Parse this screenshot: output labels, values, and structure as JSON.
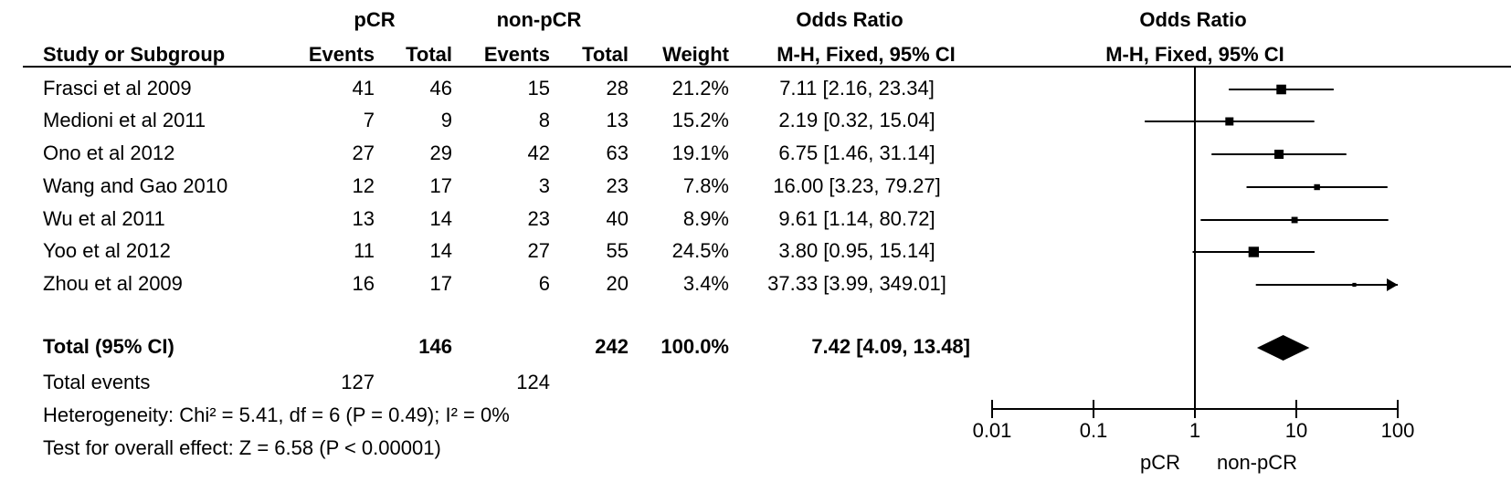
{
  "chart_data": {
    "type": "forest",
    "header_groups": [
      "pCR",
      "non-pCR",
      "Odds Ratio",
      "Odds Ratio"
    ],
    "columns": [
      "Study or Subgroup",
      "Events",
      "Total",
      "Events",
      "Total",
      "Weight",
      "M-H, Fixed, 95% CI",
      "M-H, Fixed, 95% CI"
    ],
    "studies": [
      {
        "name": "Frasci et al 2009",
        "pcr_events": 41,
        "pcr_total": 46,
        "nonpcr_events": 15,
        "nonpcr_total": 28,
        "weight": {
          "value": 21.2,
          "label": "21.2%"
        },
        "or": 7.11,
        "lower": 2.16,
        "upper": 23.34,
        "ci_label": "7.11 [2.16, 23.34]"
      },
      {
        "name": "Medioni et al 2011",
        "pcr_events": 7,
        "pcr_total": 9,
        "nonpcr_events": 8,
        "nonpcr_total": 13,
        "weight": {
          "value": 15.2,
          "label": "15.2%"
        },
        "or": 2.19,
        "lower": 0.32,
        "upper": 15.04,
        "ci_label": "2.19 [0.32, 15.04]"
      },
      {
        "name": "Ono et al 2012",
        "pcr_events": 27,
        "pcr_total": 29,
        "nonpcr_events": 42,
        "nonpcr_total": 63,
        "weight": {
          "value": 19.1,
          "label": "19.1%"
        },
        "or": 6.75,
        "lower": 1.46,
        "upper": 31.14,
        "ci_label": "6.75 [1.46, 31.14]"
      },
      {
        "name": "Wang and Gao 2010",
        "pcr_events": 12,
        "pcr_total": 17,
        "nonpcr_events": 3,
        "nonpcr_total": 23,
        "weight": {
          "value": 7.8,
          "label": "7.8%"
        },
        "or": 16.0,
        "lower": 3.23,
        "upper": 79.27,
        "ci_label": "16.00 [3.23, 79.27]"
      },
      {
        "name": "Wu et al 2011",
        "pcr_events": 13,
        "pcr_total": 14,
        "nonpcr_events": 23,
        "nonpcr_total": 40,
        "weight": {
          "value": 8.9,
          "label": "8.9%"
        },
        "or": 9.61,
        "lower": 1.14,
        "upper": 80.72,
        "ci_label": "9.61 [1.14, 80.72]"
      },
      {
        "name": "Yoo et al 2012",
        "pcr_events": 11,
        "pcr_total": 14,
        "nonpcr_events": 27,
        "nonpcr_total": 55,
        "weight": {
          "value": 24.5,
          "label": "24.5%"
        },
        "or": 3.8,
        "lower": 0.95,
        "upper": 15.14,
        "ci_label": "3.80 [0.95, 15.14]"
      },
      {
        "name": "Zhou et al 2009",
        "pcr_events": 16,
        "pcr_total": 17,
        "nonpcr_events": 6,
        "nonpcr_total": 20,
        "weight": {
          "value": 3.4,
          "label": "3.4%"
        },
        "or": 37.33,
        "lower": 3.99,
        "upper": 349.01,
        "ci_label": "37.33 [3.99, 349.01]"
      }
    ],
    "total": {
      "name": "Total (95% CI)",
      "pcr_total": 146,
      "nonpcr_total": 242,
      "weight": {
        "value": 100.0,
        "label": "100.0%"
      },
      "or": 7.42,
      "lower": 4.09,
      "upper": 13.48,
      "ci_label": "7.42 [4.09, 13.48]"
    },
    "total_events": {
      "label": "Total events",
      "pcr_events": 127,
      "nonpcr_events": 124
    },
    "heterogeneity": "Heterogeneity: Chi² = 5.41, df = 6 (P = 0.49); I² = 0%",
    "overall_effect": "Test for overall effect: Z = 6.58 (P < 0.00001)",
    "x_scale": "log",
    "xlim": [
      0.01,
      100
    ],
    "xticks": [
      0.01,
      0.1,
      1,
      10,
      100
    ],
    "reference_line": 1,
    "favours_left": "pCR",
    "favours_right": "non-pCR",
    "color": "#000000"
  }
}
